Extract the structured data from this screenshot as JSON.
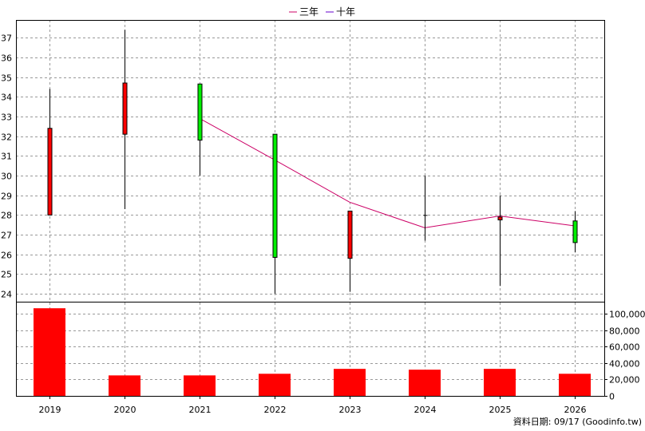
{
  "chart_data": {
    "type": "candlestick",
    "legend": {
      "placement": "top-center",
      "entries": [
        {
          "name": "三年",
          "color": "#cc0066"
        },
        {
          "name": "十年",
          "color": "#6600cc"
        }
      ]
    },
    "x_labels": [
      "2019",
      "2020",
      "2021",
      "2022",
      "2023",
      "2024",
      "2025",
      "2026"
    ],
    "price_axis": {
      "ylim": [
        23.6,
        37.9
      ],
      "ticks": [
        24,
        25,
        26,
        27,
        28,
        29,
        30,
        31,
        32,
        33,
        34,
        35,
        36,
        37
      ],
      "side": "left",
      "grid": true
    },
    "candles": [
      {
        "year": "2019",
        "open": 28.0,
        "close": 32.4,
        "high": 34.4,
        "low": 28.0,
        "color": "#ff0000"
      },
      {
        "year": "2020",
        "open": 32.1,
        "close": 34.7,
        "high": 37.4,
        "low": 28.3,
        "color": "#ff0000"
      },
      {
        "year": "2021",
        "open": 34.65,
        "close": 31.8,
        "high": 34.65,
        "low": 30.0,
        "color": "#00ee00"
      },
      {
        "year": "2022",
        "open": 32.1,
        "close": 25.85,
        "high": 32.1,
        "low": 24.0,
        "color": "#00ee00"
      },
      {
        "year": "2023",
        "open": 25.8,
        "close": 28.2,
        "high": 28.2,
        "low": 24.1,
        "color": "#ff0000"
      },
      {
        "year": "2024",
        "open": 27.95,
        "close": 28.0,
        "high": 30.0,
        "low": 26.7,
        "color": "#000000"
      },
      {
        "year": "2025",
        "open": 27.75,
        "close": 27.9,
        "high": 29.0,
        "low": 24.4,
        "color": "#ff0000"
      },
      {
        "year": "2026",
        "open": 27.7,
        "close": 26.6,
        "high": 28.2,
        "low": 26.1,
        "color": "#00ee00"
      }
    ],
    "ma_three_year": [
      {
        "year": "2021",
        "value": 32.9
      },
      {
        "year": "2022",
        "value": 30.8
      },
      {
        "year": "2023",
        "value": 28.65
      },
      {
        "year": "2024",
        "value": 27.35
      },
      {
        "year": "2025",
        "value": 27.95
      },
      {
        "year": "2026",
        "value": 27.45
      }
    ],
    "volume_axis": {
      "ylim": [
        0,
        115000
      ],
      "ticks": [
        0,
        20000,
        40000,
        60000,
        80000,
        100000
      ],
      "tick_labels": [
        "0",
        "20,000",
        "40,000",
        "60,000",
        "80,000",
        "100,000"
      ],
      "side": "right",
      "grid": true
    },
    "volumes": [
      {
        "year": "2019",
        "value": 107000
      },
      {
        "year": "2020",
        "value": 25000
      },
      {
        "year": "2021",
        "value": 25000
      },
      {
        "year": "2022",
        "value": 27000
      },
      {
        "year": "2023",
        "value": 33000
      },
      {
        "year": "2024",
        "value": 32000
      },
      {
        "year": "2025",
        "value": 33000
      },
      {
        "year": "2026",
        "value": 27000
      }
    ],
    "volume_color": "#ff0000",
    "footer": "資料日期: 09/17  (Goodinfo.tw)"
  }
}
